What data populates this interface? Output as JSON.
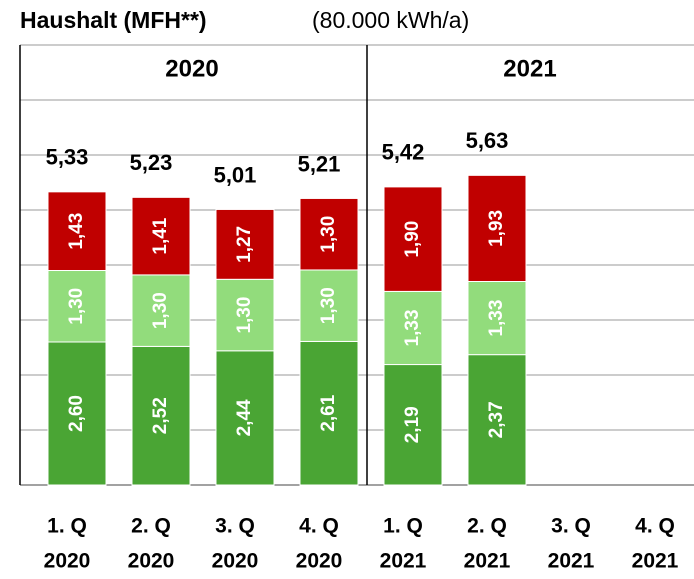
{
  "chart_data": {
    "type": "stacked_bar",
    "title": "Haushalt (MFH**)",
    "subtitle": "(80.000 kWh/a)",
    "groups": [
      "2020",
      "2021"
    ],
    "categories": [
      [
        "1. Q",
        "2020"
      ],
      [
        "2. Q",
        "2020"
      ],
      [
        "3. Q",
        "2020"
      ],
      [
        "4. Q",
        "2020"
      ],
      [
        "1. Q",
        "2021"
      ],
      [
        "2. Q",
        "2021"
      ],
      [
        "3. Q",
        "2021"
      ],
      [
        "4. Q",
        "2021"
      ]
    ],
    "series": [
      {
        "color": "#4aa534",
        "values": [
          2.6,
          2.52,
          2.44,
          2.61,
          2.19,
          2.37,
          null,
          null
        ],
        "value_labels": [
          "2,60",
          "2,52",
          "2,44",
          "2,61",
          "2,19",
          "2,37",
          null,
          null
        ]
      },
      {
        "color": "#92dc7c",
        "values": [
          1.3,
          1.3,
          1.3,
          1.3,
          1.33,
          1.33,
          null,
          null
        ],
        "value_labels": [
          "1,30",
          "1,30",
          "1,30",
          "1,30",
          "1,33",
          "1,33",
          null,
          null
        ]
      },
      {
        "color": "#c00000",
        "values": [
          1.43,
          1.41,
          1.27,
          1.3,
          1.9,
          1.93,
          null,
          null
        ],
        "value_labels": [
          "1,43",
          "1,41",
          "1,27",
          "1,30",
          "1,90",
          "1,93",
          null,
          null
        ]
      }
    ],
    "totals": [
      5.33,
      5.23,
      5.01,
      5.21,
      5.42,
      5.63,
      null,
      null
    ],
    "total_labels": [
      "5,33",
      "5,23",
      "5,01",
      "5,21",
      "5,42",
      "5,63",
      null,
      null
    ],
    "ylim": [
      0,
      8
    ],
    "yticks": [
      0,
      1,
      2,
      3,
      4,
      5,
      6,
      7
    ],
    "grid": true
  }
}
